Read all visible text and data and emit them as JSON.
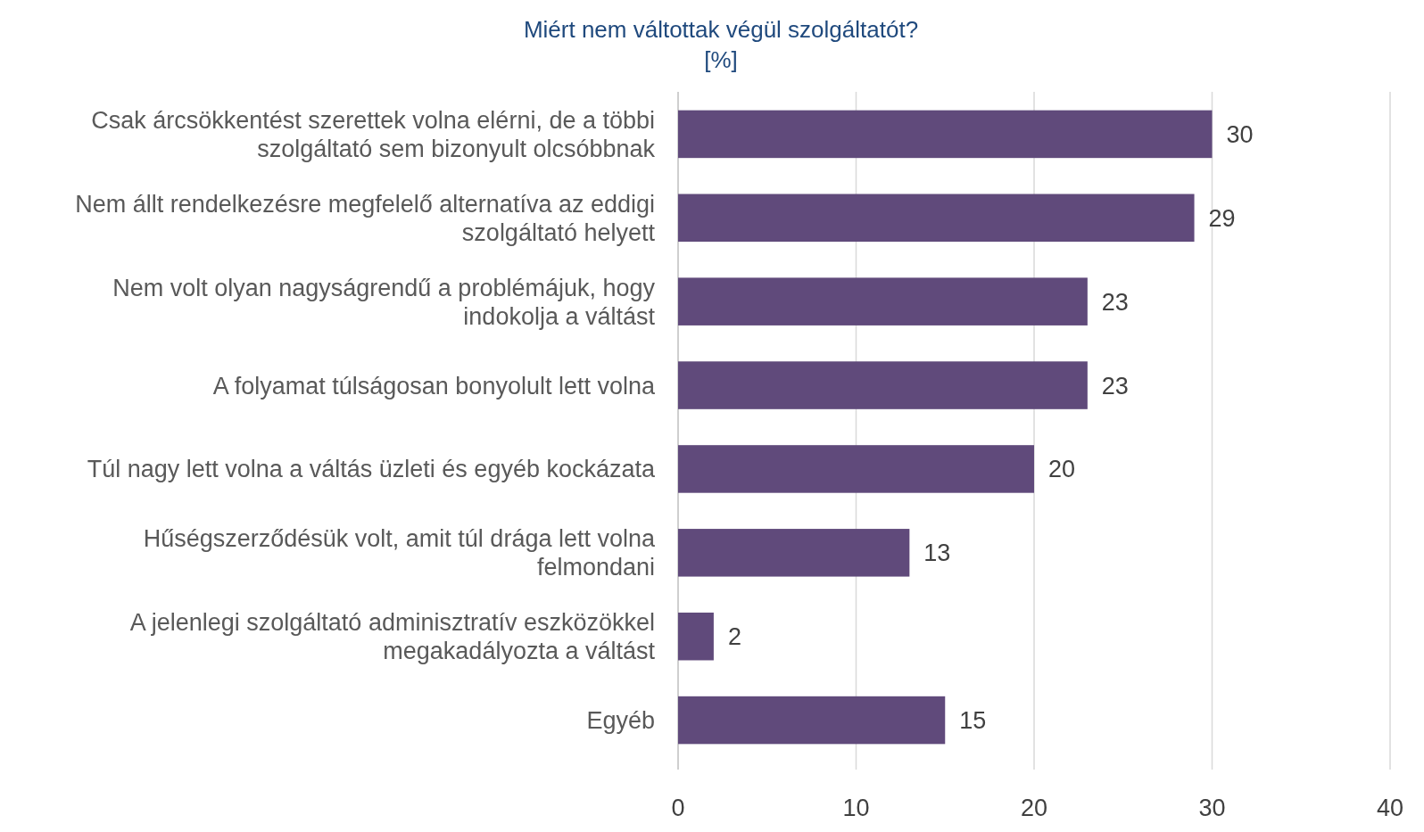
{
  "chart_data": {
    "type": "bar",
    "orientation": "horizontal",
    "title": "Miért nem váltottak végül szolgáltatót?",
    "subtitle": "[%]",
    "categories": [
      "Csak árcsökkentést szerettek volna elérni, de a többi szolgáltató sem bizonyult olcsóbbnak",
      "Nem állt rendelkezésre megfelelő alternatíva az eddigi szolgáltató helyett",
      "Nem volt olyan nagyságrendű a problémájuk, hogy indokolja a váltást",
      "A folyamat túlságosan bonyolult lett volna",
      "Túl nagy lett volna a váltás üzleti és egyéb kockázata",
      "Hűségszerződésük volt, amit túl drága lett volna felmondani",
      "A jelenlegi szolgáltató adminisztratív eszközökkel megakadályozta a váltást",
      "Egyéb"
    ],
    "values": [
      30,
      29,
      23,
      23,
      20,
      13,
      2,
      15
    ],
    "color": "#604a7b",
    "xlim": [
      0,
      40
    ],
    "xticks": [
      0,
      10,
      20,
      30,
      40
    ],
    "grid": "x",
    "data_labels": true
  }
}
